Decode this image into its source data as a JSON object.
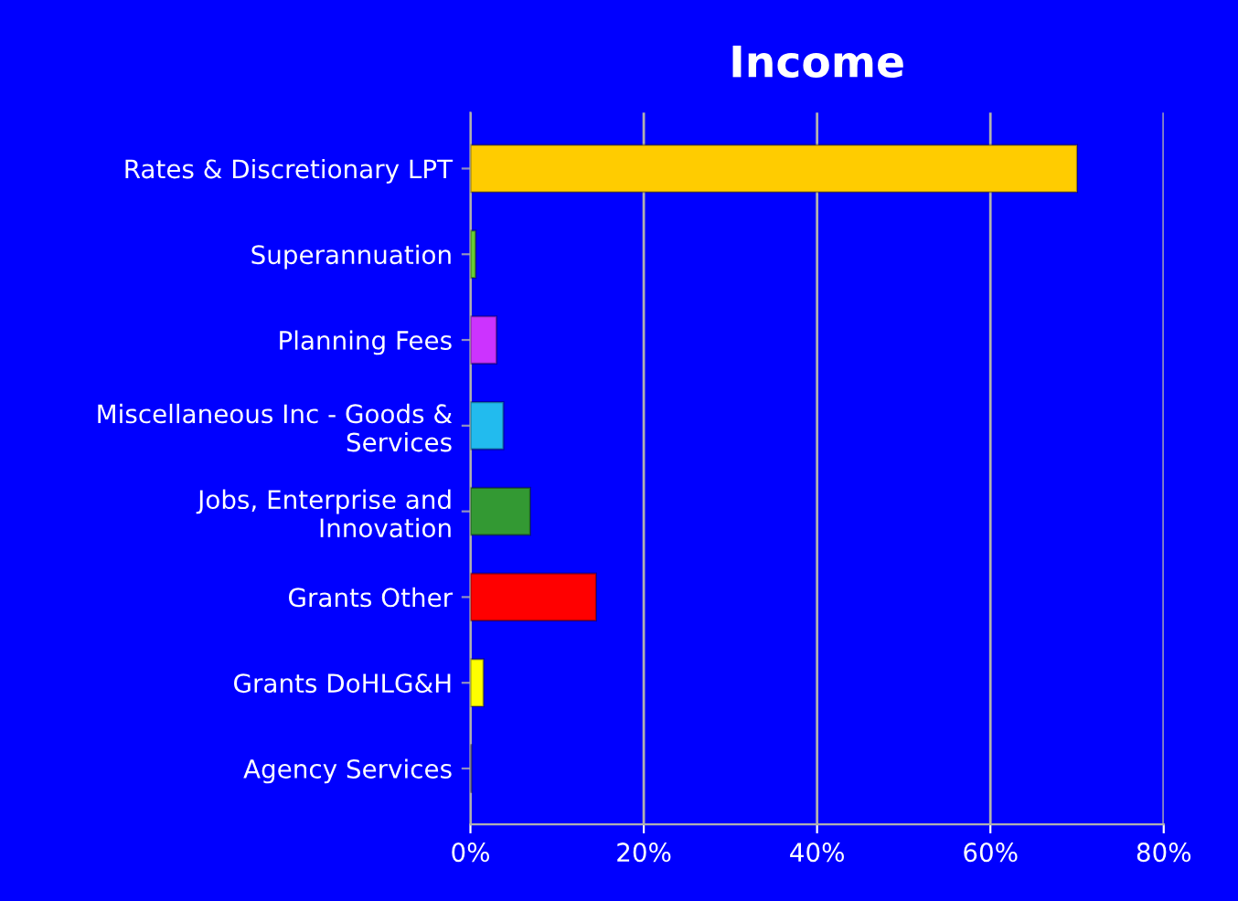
{
  "chart_data": {
    "type": "bar",
    "orientation": "horizontal",
    "title": "Income",
    "categories": [
      "Rates & Discretionary LPT",
      "Superannuation",
      "Planning Fees",
      "Miscellaneous Inc - Goods &\nServices",
      "Jobs, Enterprise and\nInnovation",
      "Grants Other",
      "Grants DoHLG&H",
      "Agency Services"
    ],
    "values": [
      70.0,
      0.6,
      3.0,
      3.8,
      6.9,
      14.5,
      1.5,
      0.1
    ],
    "colors": [
      "#ffcc00",
      "#66cc33",
      "#cc33ff",
      "#22bbee",
      "#339933",
      "#ff0000",
      "#ffff00",
      "#333399"
    ],
    "xlim": [
      0,
      80
    ],
    "xticks": [
      {
        "value": 0,
        "label": "0%"
      },
      {
        "value": 20,
        "label": "20%"
      },
      {
        "value": 40,
        "label": "40%"
      },
      {
        "value": 60,
        "label": "60%"
      },
      {
        "value": 80,
        "label": "80%"
      }
    ],
    "grid": "x",
    "legend": false
  }
}
